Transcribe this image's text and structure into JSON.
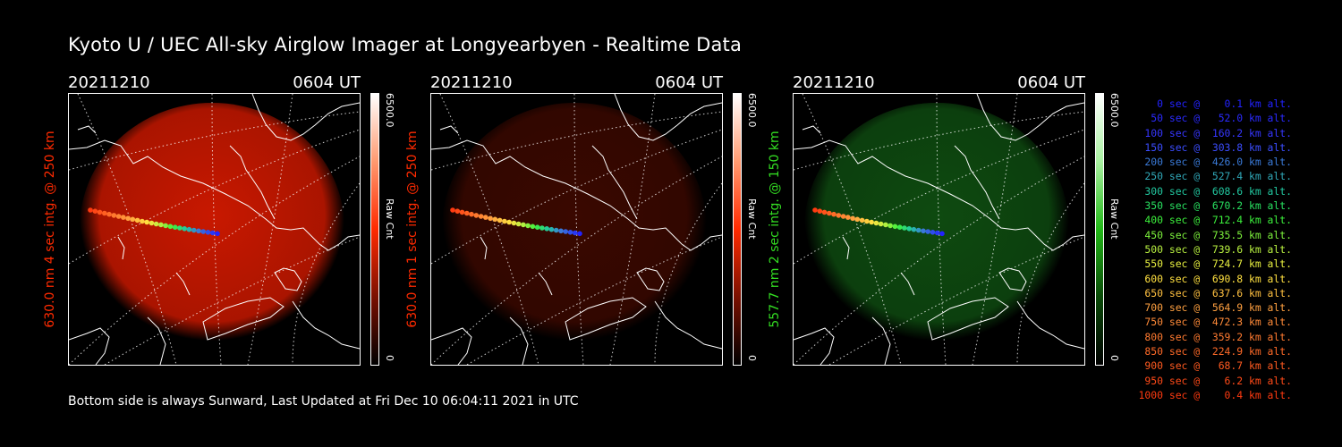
{
  "title": "Kyoto U / UEC All-sky Airglow Imager at Longyearbyen - Realtime Data",
  "footer": "Bottom side is always Sunward, Last Updated at Fri Dec 10 06:04:11 2021 in UTC",
  "panels": [
    {
      "date": "20211210",
      "time": "0604 UT",
      "label": "630.0 nm 4 sec intg. @ 250 km",
      "cbar_max": "6500.0",
      "cbar_unit": "Raw Cnt",
      "cbar_min": "0",
      "color": "#ff2a00",
      "glow": "#c81800"
    },
    {
      "date": "20211210",
      "time": "0604 UT",
      "label": "630.0 nm 1 sec intg. @ 250 km",
      "cbar_max": "6500.0",
      "cbar_unit": "Raw Cnt",
      "cbar_min": "0",
      "color": "#ff2a00",
      "glow": "#3a0800"
    },
    {
      "date": "20211210",
      "time": "0604 UT",
      "label": "557.7 nm 2 sec intg. @ 150 km",
      "cbar_max": "6500.0",
      "cbar_unit": "Raw Cnt",
      "cbar_min": "0",
      "color": "#33dd22",
      "glow": "#0e4a10"
    }
  ],
  "legend": [
    {
      "text": "   0 sec @    0.1 km alt.",
      "color": "#2222ff"
    },
    {
      "text": "  50 sec @   52.0 km alt.",
      "color": "#2a2aff"
    },
    {
      "text": " 100 sec @  160.2 km alt.",
      "color": "#3636ff"
    },
    {
      "text": " 150 sec @  303.8 km alt.",
      "color": "#3b4dff"
    },
    {
      "text": " 200 sec @  426.0 km alt.",
      "color": "#3a7ad8"
    },
    {
      "text": " 250 sec @  527.4 km alt.",
      "color": "#30a8b8"
    },
    {
      "text": " 300 sec @  608.6 km alt.",
      "color": "#22c8a0"
    },
    {
      "text": " 350 sec @  670.2 km alt.",
      "color": "#28e060"
    },
    {
      "text": " 400 sec @  712.4 km alt.",
      "color": "#3cf03c"
    },
    {
      "text": " 450 sec @  735.5 km alt.",
      "color": "#7cf03c"
    },
    {
      "text": " 500 sec @  739.6 km alt.",
      "color": "#b8f040"
    },
    {
      "text": " 550 sec @  724.7 km alt.",
      "color": "#e8f040"
    },
    {
      "text": " 600 sec @  690.8 km alt.",
      "color": "#ffe040"
    },
    {
      "text": " 650 sec @  637.6 km alt.",
      "color": "#ffc040"
    },
    {
      "text": " 700 sec @  564.9 km alt.",
      "color": "#ffa040"
    },
    {
      "text": " 750 sec @  472.3 km alt.",
      "color": "#ff8a38"
    },
    {
      "text": " 800 sec @  359.2 km alt.",
      "color": "#ff7a30"
    },
    {
      "text": " 850 sec @  224.9 km alt.",
      "color": "#ff6a28"
    },
    {
      "text": " 900 sec @   68.7 km alt.",
      "color": "#ff5a20"
    },
    {
      "text": " 950 sec @    6.2 km alt.",
      "color": "#ff4a18"
    },
    {
      "text": "1000 sec @    0.4 km alt.",
      "color": "#ff3a10"
    }
  ]
}
